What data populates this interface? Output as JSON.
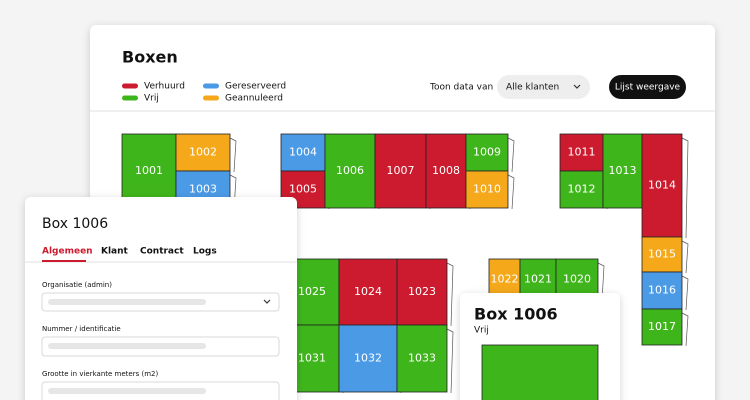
{
  "header": {
    "title": "Boxen"
  },
  "legend": [
    {
      "label": "Verhuurd",
      "color": "#cc1a2e"
    },
    {
      "label": "Vrij",
      "color": "#3fb51c"
    },
    {
      "label": "Gereserveerd",
      "color": "#4b9ae6"
    },
    {
      "label": "Geannuleerd",
      "color": "#f4a81a"
    }
  ],
  "filter": {
    "label": "Toon data van",
    "value": "Alle klanten"
  },
  "button": "Lijst weergave",
  "boxes": [
    {
      "label": "1001",
      "color": "#3fb51c"
    },
    {
      "label": "1002",
      "color": "#f4a81a"
    },
    {
      "label": "1003",
      "color": "#4b9ae6"
    },
    {
      "label": "1004",
      "color": "#4b9ae6"
    },
    {
      "label": "1005",
      "color": "#cc1a2e"
    },
    {
      "label": "1006",
      "color": "#3fb51c"
    },
    {
      "label": "1007",
      "color": "#cc1a2e"
    },
    {
      "label": "1008",
      "color": "#cc1a2e"
    },
    {
      "label": "1009",
      "color": "#3fb51c"
    },
    {
      "label": "1010",
      "color": "#f4a81a"
    },
    {
      "label": "1011",
      "color": "#cc1a2e"
    },
    {
      "label": "1012",
      "color": "#3fb51c"
    },
    {
      "label": "1013",
      "color": "#3fb51c"
    },
    {
      "label": "1014",
      "color": "#cc1a2e"
    },
    {
      "label": "1015",
      "color": "#f4a81a"
    },
    {
      "label": "1016",
      "color": "#4b9ae6"
    },
    {
      "label": "1017",
      "color": "#3fb51c"
    },
    {
      "label": "1025",
      "color": "#3fb51c"
    },
    {
      "label": "1024",
      "color": "#cc1a2e"
    },
    {
      "label": "1023",
      "color": "#cc1a2e"
    },
    {
      "label": "1031",
      "color": "#3fb51c"
    },
    {
      "label": "1032",
      "color": "#4b9ae6"
    },
    {
      "label": "1033",
      "color": "#3fb51c"
    },
    {
      "label": "1022",
      "color": "#f4a81a"
    },
    {
      "label": "1021",
      "color": "#3fb51c"
    },
    {
      "label": "1020",
      "color": "#3fb51c"
    }
  ],
  "detail_panel": {
    "title": "Box 1006",
    "tabs": [
      "Algemeen",
      "Klant",
      "Contract",
      "Logs"
    ],
    "fields": [
      "Organisatie (admin)",
      "Nummer / identificatie",
      "Grootte in vierkante meters (m2)"
    ]
  },
  "popup": {
    "title": "Box 1006",
    "status": "Vrij",
    "color": "#3fb51c"
  }
}
